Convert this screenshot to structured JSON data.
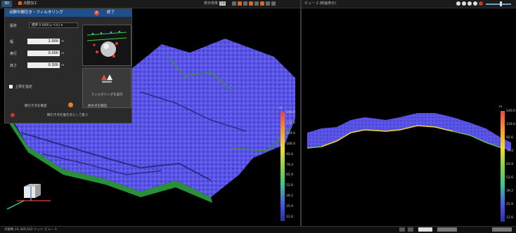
{
  "left_toolbar": {
    "tabs": [
      "3D",
      "点群加工"
    ],
    "zoom_label": "表示倍率",
    "zoom_value": "1.0"
  },
  "filter_panel": {
    "title": "点群の間引き・フィルタリング",
    "close_label": "終了",
    "rows": [
      {
        "label": "設定",
        "value": "標準 0.000(レベル)"
      },
      {
        "label": "幅",
        "value": "2.000",
        "unit": "m"
      },
      {
        "label": "奥行",
        "value": "0.000",
        "unit": "m"
      },
      {
        "label": "高さ",
        "value": "0.300",
        "unit": "m"
      }
    ],
    "checkbox_label": "上限を指定",
    "exec_label": "フィルタリングを実行",
    "link_left": "間引き点を確認",
    "link_right": "除外点を確認",
    "bottom_label": "間引き点を復元点として扱う"
  },
  "right_toolbar": {
    "title": "ビュー 2 (断面表示)"
  },
  "left_colorbar": {
    "unit": "m",
    "ticks": [
      "140.0",
      "132.0",
      "119.0",
      "106.0",
      "92.6",
      "79.3",
      "65.9",
      "52.6",
      "39.2",
      "25.9",
      "12.6"
    ]
  },
  "right_colorbar": {
    "unit": "m",
    "ticks": [
      "140.0",
      "119.0",
      "92.6",
      "79.3",
      "65.9",
      "52.6",
      "39.2",
      "25.9",
      "12.6"
    ]
  },
  "statusbar": {
    "text": "点群数 24,369,542  ドット  ビュー 1"
  },
  "colors": {
    "terrain": "#5b56e8",
    "panel_header": "#1d4f8c",
    "accent_orange": "#d2682c"
  }
}
